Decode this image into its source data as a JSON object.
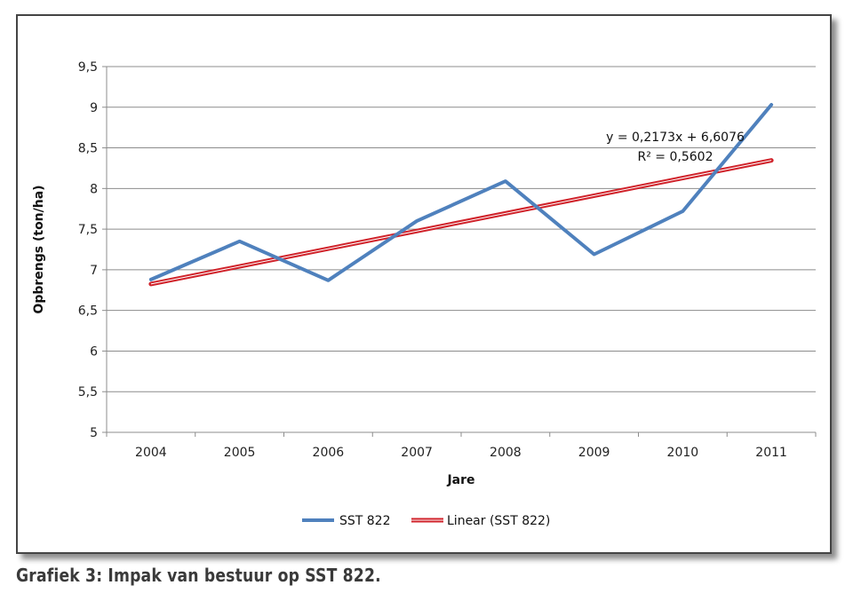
{
  "caption": "Grafiek 3: Impak van bestuur op SST 822.",
  "chart_data": {
    "type": "line",
    "title": "",
    "xlabel": "Jare",
    "ylabel": "Opbrengs (ton/ha)",
    "categories": [
      "2004",
      "2005",
      "2006",
      "2007",
      "2008",
      "2009",
      "2010",
      "2011"
    ],
    "ylim": [
      5,
      9.5
    ],
    "y_ticks": [
      "5",
      "5,5",
      "6",
      "6,5",
      "7",
      "7,5",
      "8",
      "8,5",
      "9",
      "9,5"
    ],
    "grid": true,
    "legend_position": "bottom",
    "series": [
      {
        "name": "SST 822",
        "values": [
          6.88,
          7.35,
          6.87,
          7.6,
          8.09,
          7.19,
          7.72,
          9.03
        ],
        "color": "#4f81bd"
      }
    ],
    "trendline": {
      "name": "Linear (SST 822)",
      "type": "linear",
      "slope": 0.2173,
      "intercept": 6.6076,
      "color": "#d0222a",
      "equation": "y = 0,2173x + 6,6076",
      "r_squared": "R² = 0,5602"
    }
  }
}
